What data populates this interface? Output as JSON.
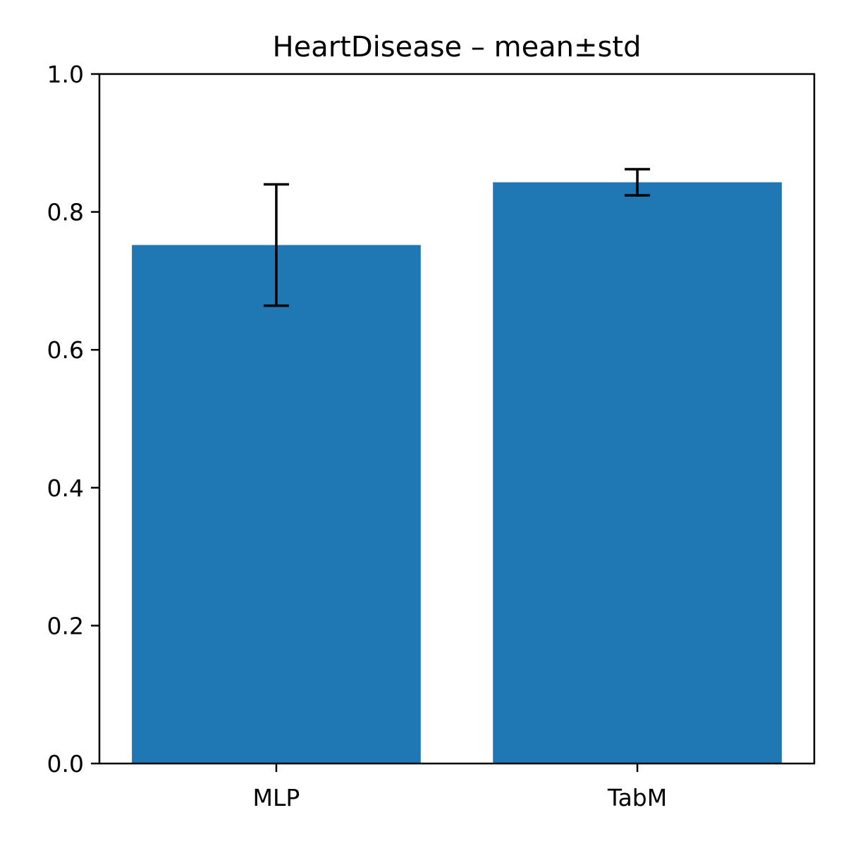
{
  "chart_data": {
    "type": "bar",
    "title": "HeartDisease – mean±std",
    "xlabel": "",
    "ylabel": "",
    "categories": [
      "MLP",
      "TabM"
    ],
    "values": [
      0.752,
      0.843
    ],
    "errors": [
      0.088,
      0.019
    ],
    "ylim": [
      0.0,
      1.0
    ],
    "yticks": [
      0.0,
      0.2,
      0.4,
      0.6,
      0.8,
      1.0
    ],
    "ytick_labels": [
      "0.0",
      "0.2",
      "0.4",
      "0.6",
      "0.8",
      "1.0"
    ],
    "grid": false,
    "legend": "none",
    "bar_color": "#1f77b4",
    "error_color": "#000000"
  }
}
